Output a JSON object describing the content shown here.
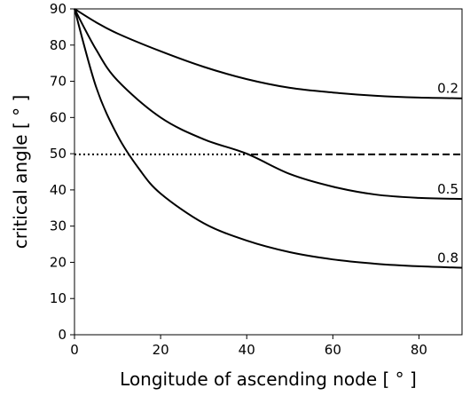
{
  "chart_data": {
    "type": "line",
    "xlabel": "Longitude of ascending node [ $^\\circ$ ]",
    "ylabel": "critical angle [ $^\\circ$ ]",
    "xlim": [
      0,
      90
    ],
    "ylim": [
      0,
      90
    ],
    "xticks": [
      0,
      20,
      40,
      60,
      80
    ],
    "yticks": [
      0,
      10,
      20,
      30,
      40,
      50,
      60,
      70,
      80,
      90
    ],
    "grid": false,
    "reference_line": {
      "y": 49.8,
      "style_left": "dotted",
      "style_right": "dashed",
      "split_x": 41
    },
    "series": [
      {
        "name": "0.2",
        "x": [
          0,
          5,
          10,
          20,
          30,
          40,
          50,
          60,
          70,
          80,
          90
        ],
        "y": [
          90,
          86.3,
          83.2,
          78.3,
          74.0,
          70.6,
          68.2,
          66.9,
          66.0,
          65.5,
          65.3
        ]
      },
      {
        "name": "0.5",
        "x": [
          0,
          5,
          10,
          20,
          30,
          40,
          50,
          60,
          70,
          80,
          90
        ],
        "y": [
          90,
          78.8,
          70.2,
          60.0,
          54.0,
          50.0,
          44.4,
          40.9,
          38.7,
          37.8,
          37.5
        ]
      },
      {
        "name": "0.8",
        "x": [
          0,
          5,
          10,
          15,
          20,
          30,
          40,
          50,
          60,
          70,
          80,
          90
        ],
        "y": [
          90,
          68.5,
          55.0,
          45.8,
          39.0,
          30.8,
          26.0,
          22.8,
          20.8,
          19.6,
          18.9,
          18.5
        ]
      }
    ]
  },
  "axis_text": {
    "xlabel": "Longitude of ascending node [ ° ]",
    "ylabel": "critical angle [ ° ]"
  }
}
